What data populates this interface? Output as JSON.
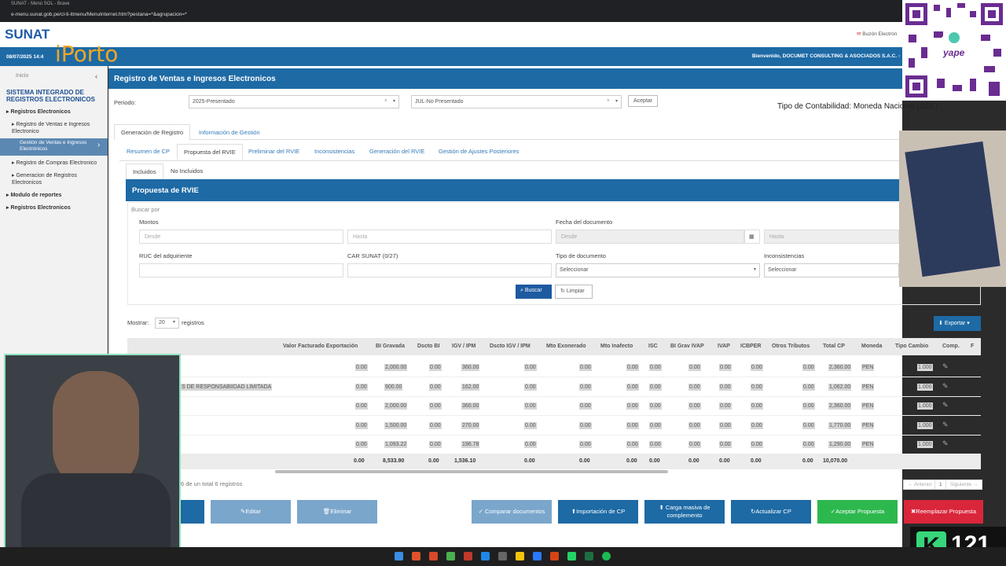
{
  "browser": {
    "tab_title": "SUNAT - Menú SOL - Brave",
    "url": "e-menu.sunat.gob.pe/cl-ti-itmenu/MenuInternet.htm?pestana=*&agrupacion=*"
  },
  "header": {
    "logo": "SUNAT",
    "overlay_brand": "iPorto",
    "buzon": "Buzón Electrón",
    "date": "08/07/2025 14:4",
    "welcome": "Bienvenido, DOCUMET CONSULTING & ASOCIADOS S.A.C. -"
  },
  "sidebar": {
    "inicio": "Inicio",
    "title": "SISTEMA INTEGRADO DE REGISTROS ELECTRONICOS",
    "items": [
      "Registros Electronicos",
      "▸ Registro de Ventas e Ingresos Electronico",
      "Gestión de Ventas e Ingresos Electrónicos",
      "▸ Registro de Compras Electronico",
      "▸ Generacion de Registros Electronicos",
      "Modulo de reportes",
      "Registros Electronicos"
    ]
  },
  "page": {
    "title": "Registro de Ventas e Ingresos Electronicos",
    "periodo_label": "Periodo:",
    "periodo_year": "2025-Presentado",
    "periodo_month": "JUL-No Presentado",
    "aceptar": "Aceptar",
    "contabilidad": "Tipo de Contabilidad: Moneda Nacional (SOL)",
    "top_tabs": [
      "Generación de Registro",
      "Información de Gestión"
    ],
    "sub_tabs": [
      "Resumen de CP",
      "Propuesta del RVIE",
      "Preliminar del RVIE",
      "Inconsistencias",
      "Generación del RVIE",
      "Gestión de Ajustes Posteriores"
    ],
    "inc_tabs": [
      "Incluidos",
      "No Incluidos"
    ],
    "panel_title": "Propuesta de RVIE",
    "buscar_por": "Buscar por",
    "montos": "Montos",
    "desde": "Desde",
    "hasta": "Hasta",
    "fecha_doc": "Fecha del documento",
    "ruc": "RUC del adquiriente",
    "car": "CAR SUNAT (0/27)",
    "tipo_doc": "Tipo de documento",
    "inconsistencias": "Inconsistencias",
    "seleccionar": "Seleccionar",
    "buscar": "Buscar",
    "limpiar": "Limpiar",
    "mostrar": "Mostrar:",
    "mostrar_val": "20",
    "registros": "registros",
    "exportar": "Exportar",
    "summary": "6 de un total 6 registros",
    "anterior": "Anterior",
    "page_num": "1",
    "siguiente": "Siguiente"
  },
  "table": {
    "headers": [
      "Valor Facturado Exportación",
      "BI Gravada",
      "Dscto BI",
      "IGV / IPM",
      "Dscto IGV / IPM",
      "Mto Exonerado",
      "Mto Inafecto",
      "ISC",
      "BI Grav IVAP",
      "IVAP",
      "ICBPER",
      "Otros Tributos",
      "Total CP",
      "Moneda",
      "Tipo Cambio",
      "Comp.",
      "F"
    ],
    "rows": [
      {
        "name": "",
        "v": [
          "0.00",
          "2,000.00",
          "0.00",
          "360.00",
          "0.00",
          "0.00",
          "0.00",
          "0.00",
          "0.00",
          "0.00",
          "0.00",
          "0.00",
          "2,360.00",
          "PEN",
          "1.000"
        ]
      },
      {
        "name": "S DE RESPONSABIIDAD LIMITADA",
        "v": [
          "0.00",
          "900.00",
          "0.00",
          "162.00",
          "0.00",
          "0.00",
          "0.00",
          "0.00",
          "0.00",
          "0.00",
          "0.00",
          "0.00",
          "1,062.00",
          "PEN",
          "1.000"
        ]
      },
      {
        "name": "",
        "v": [
          "0.00",
          "2,000.00",
          "0.00",
          "360.00",
          "0.00",
          "0.00",
          "0.00",
          "0.00",
          "0.00",
          "0.00",
          "0.00",
          "0.00",
          "2,360.00",
          "PEN",
          "1.000"
        ]
      },
      {
        "name": "",
        "v": [
          "0.00",
          "1,500.00",
          "0.00",
          "270.00",
          "0.00",
          "0.00",
          "0.00",
          "0.00",
          "0.00",
          "0.00",
          "0.00",
          "0.00",
          "1,770.00",
          "PEN",
          "1.000"
        ]
      },
      {
        "name": "",
        "v": [
          "0.00",
          "1,093.22",
          "0.00",
          "196.78",
          "0.00",
          "0.00",
          "0.00",
          "0.00",
          "0.00",
          "0.00",
          "0.00",
          "0.00",
          "1,290.00",
          "PEN",
          "1.000"
        ]
      }
    ],
    "totals": [
      "0.00",
      "8,533.90",
      "0.00",
      "1,536.10",
      "0.00",
      "0.00",
      "0.00",
      "0.00",
      "0.00",
      "0.00",
      "0.00",
      "0.00",
      "10,070.00"
    ]
  },
  "actions": {
    "editar": "Editar",
    "eliminar": "Eliminar",
    "comparar": "Comparar documentos",
    "importacion": "Importación de CP",
    "carga": "Carga masiva de complemento",
    "actualizar": "Actualizar CP",
    "aceptar_propuesta": "Aceptar Propuesta",
    "reemplazar": "Reemplazar Propuesta"
  },
  "overlay": {
    "yape": "yape",
    "k_number": "121"
  },
  "colors": {
    "primary": "#1d6aa5",
    "green": "#2db84d",
    "red": "#d9263b",
    "light_blue": "#7aa6cc"
  }
}
